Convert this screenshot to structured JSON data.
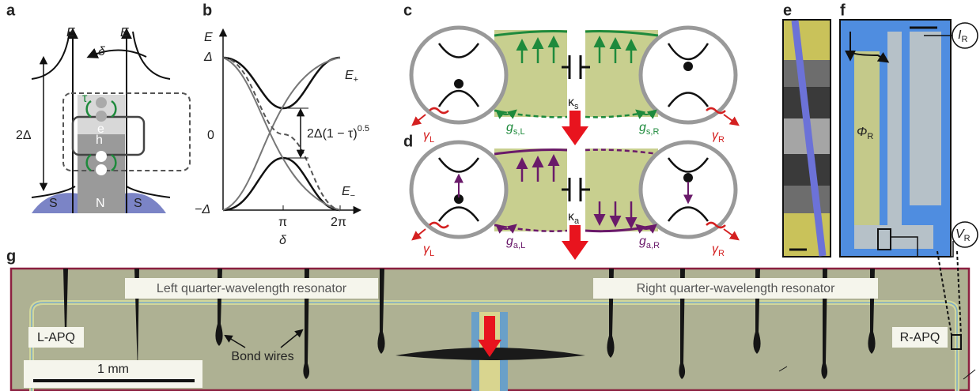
{
  "panel_labels": [
    "a",
    "b",
    "c",
    "d",
    "e",
    "f",
    "g"
  ],
  "panel_a": {
    "axis_left": "E",
    "axis_right": "E",
    "phase": "δ",
    "transmission": "τ",
    "electron": "e",
    "hole": "h",
    "gap": "2Δ",
    "leads": [
      "S",
      "N",
      "S"
    ]
  },
  "panel_b": {
    "y_axis": "E",
    "yticks": [
      "Δ",
      "0",
      "−Δ"
    ],
    "xticks": [
      "π",
      "2π"
    ],
    "x_axis": "δ",
    "upper": {
      "t": "E",
      "s": "+"
    },
    "lower": {
      "t": "E",
      "s": "−"
    },
    "splitting": {
      "t": "2Δ(1 − τ)",
      "sup": "0.5"
    }
  },
  "panel_c": {
    "coupling": {
      "t": "κ",
      "s": "s"
    },
    "gamma_left": {
      "t": "γ",
      "s": "L"
    },
    "g_left": {
      "t": "g",
      "s": "s,L"
    },
    "g_right": {
      "t": "g",
      "s": "s,R"
    },
    "gamma_right": {
      "t": "γ",
      "s": "R"
    }
  },
  "panel_d": {
    "coupling": {
      "t": "κ",
      "s": "a"
    },
    "gamma_left": {
      "t": "γ",
      "s": "L"
    },
    "g_left": {
      "t": "g",
      "s": "a,L"
    },
    "g_right": {
      "t": "g",
      "s": "a,R"
    },
    "gamma_right": {
      "t": "γ",
      "s": "R"
    }
  },
  "panel_f": {
    "current": {
      "t": "I",
      "s": "R"
    },
    "flux": {
      "t": "Φ",
      "s": "R"
    },
    "voltage": {
      "t": "V",
      "s": "R"
    }
  },
  "panel_g": {
    "left_resonator": "Left quarter-wavelength resonator",
    "right_resonator": "Right quarter-wavelength resonator",
    "left_qubit": "L-APQ",
    "right_qubit": "R-APQ",
    "scale_bar": "1 mm",
    "bond_wires": "Bond wires"
  }
}
